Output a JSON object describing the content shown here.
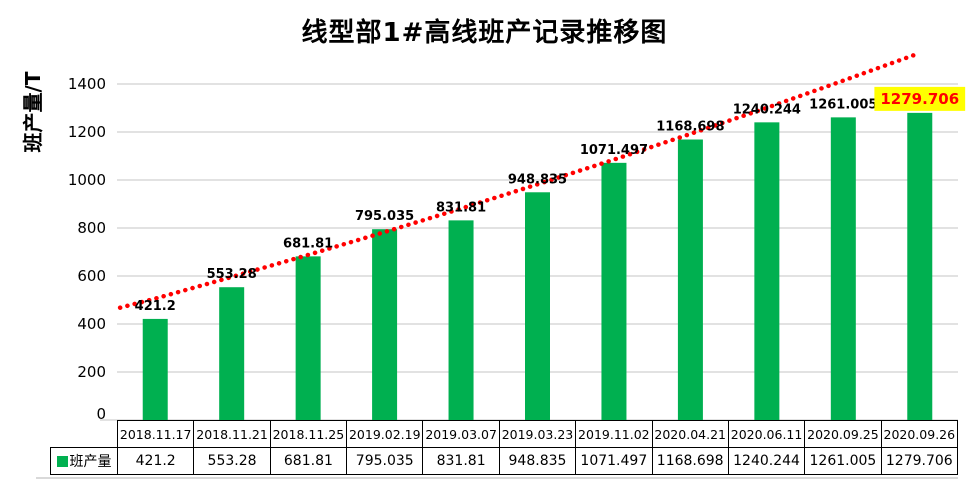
{
  "chart_data": {
    "type": "bar",
    "title": "线型部1#高线班产记录推移图",
    "xlabel": "",
    "ylabel": "班产量/T",
    "ylim": [
      0,
      1500
    ],
    "yticks": [
      0,
      200,
      400,
      600,
      800,
      1000,
      1200,
      1400
    ],
    "grid": true,
    "categories": [
      "2018.11.17",
      "2018.11.21",
      "2018.11.25",
      "2019.02.19",
      "2019.03.07",
      "2019.03.23",
      "2019.11.02",
      "2020.04.21",
      "2020.06.11",
      "2020.09.25",
      "2020.09.26"
    ],
    "series": [
      {
        "name": "班产量",
        "color": "#00B050",
        "values": [
          421.2,
          553.28,
          681.81,
          795.035,
          831.81,
          948.835,
          1071.497,
          1168.698,
          1240.244,
          1261.005,
          1279.706
        ]
      }
    ],
    "data_labels": [
      "421.2",
      "553.28",
      "681.81",
      "795.035",
      "831.81",
      "948.835",
      "1071.497",
      "1168.698",
      "1240.244",
      "1261.005",
      "1279.706"
    ],
    "last_label_highlight": {
      "text_color": "#FF0000",
      "background": "#FFFF00"
    },
    "trendline": {
      "style": "dotted",
      "color": "#FF0000",
      "points_estimated": [
        [
          0.04,
          468
        ],
        [
          0.5,
          506
        ],
        [
          1.5,
          596
        ],
        [
          2.5,
          688
        ],
        [
          3.5,
          783
        ],
        [
          4.5,
          881
        ],
        [
          5.5,
          982
        ],
        [
          6.5,
          1085
        ],
        [
          7.5,
          1192
        ],
        [
          8.5,
          1301
        ],
        [
          9.5,
          1414
        ],
        [
          10.5,
          1529
        ]
      ]
    },
    "legend": {
      "label": "班产量",
      "marker_color": "#00B050",
      "position": "table-left"
    },
    "table": {
      "header_row": [
        "2018.11.17",
        "2018.11.21",
        "2018.11.25",
        "2019.02.19",
        "2019.03.07",
        "2019.03.23",
        "2019.11.02",
        "2020.04.21",
        "2020.06.11",
        "2020.09.25",
        "2020.09.26"
      ],
      "value_row_label": "班产量",
      "value_row": [
        "421.2",
        "553.28",
        "681.81",
        "795.035",
        "831.81",
        "948.835",
        "1071.497",
        "1168.698",
        "1240.244",
        "1261.005",
        "1279.706"
      ]
    },
    "colors": {
      "bar": "#00B050",
      "trend": "#FF0000",
      "grid": "#D9D9D9",
      "axis": "#000000",
      "highlight_bg": "#FFFF00",
      "highlight_text": "#FF0000",
      "label_text": "#000000"
    }
  }
}
